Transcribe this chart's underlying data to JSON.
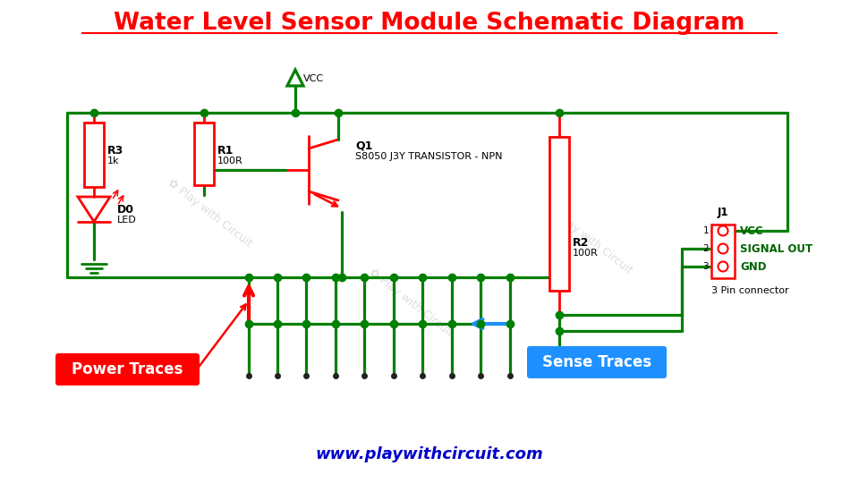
{
  "title": "Water Level Sensor Module Schematic Diagram",
  "title_color": "#FF0000",
  "title_fontsize": 19,
  "bg_color": "#FFFFFF",
  "website": "www.playwithcircuit.com",
  "website_color": "#0000CC",
  "GREEN": "#008000",
  "RED": "#FF0000",
  "BLUE": "#1E90FF",
  "DKGREEN": "#006400",
  "BLACK": "#000000",
  "power_traces_label": "Power Traces",
  "sense_traces_label": "Sense Traces",
  "connector_label": "3 Pin connector",
  "r3_label": "R3",
  "r3_val": "1k",
  "r1_label": "R1",
  "r1_val": "100R",
  "r2_label": "R2",
  "r2_val": "100R",
  "q1_label": "Q1",
  "q1_val": "S8050 J3Y TRANSISTOR - NPN",
  "d0_label": "D0",
  "d0_val": "LED",
  "j1_label": "J1",
  "vcc_label": "VCC",
  "sig_label": "SIGNAL OUT",
  "gnd_label": "GND",
  "watermark": "Play with Circuit"
}
